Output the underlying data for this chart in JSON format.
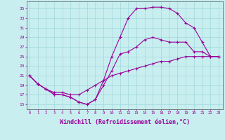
{
  "background_color": "#c8eef0",
  "grid_color": "#a0d8dc",
  "line_color": "#990099",
  "xlabel": "Windchill (Refroidissement éolien,°C)",
  "xlabel_fontsize": 6,
  "xtick_labels": [
    "0",
    "1",
    "2",
    "3",
    "4",
    "5",
    "6",
    "7",
    "8",
    "9",
    "10",
    "11",
    "12",
    "13",
    "14",
    "15",
    "16",
    "17",
    "18",
    "19",
    "20",
    "21",
    "22",
    "23"
  ],
  "ytick_labels": [
    "15",
    "17",
    "19",
    "21",
    "23",
    "25",
    "27",
    "29",
    "31",
    "33",
    "35"
  ],
  "ylim": [
    14.0,
    36.5
  ],
  "xlim": [
    -0.3,
    23.5
  ],
  "curve_upper_x": [
    0,
    1,
    2,
    3,
    4,
    5,
    6,
    7,
    8,
    9,
    10,
    11,
    12,
    13,
    14,
    15,
    16,
    17,
    18,
    19,
    20,
    21,
    22,
    23
  ],
  "curve_upper_y": [
    21,
    19.3,
    18.2,
    17.1,
    17.0,
    16.5,
    15.5,
    15.0,
    16.0,
    20.0,
    25.0,
    29.0,
    33.0,
    35.0,
    35.0,
    35.3,
    35.3,
    35.0,
    34.0,
    32.0,
    31.0,
    28.0,
    25.0,
    25.0
  ],
  "curve_mid_x": [
    0,
    1,
    2,
    3,
    4,
    5,
    6,
    7,
    8,
    9,
    10,
    11,
    12,
    13,
    14,
    15,
    16,
    17,
    18,
    19,
    20,
    21,
    22,
    23
  ],
  "curve_mid_y": [
    21,
    19.3,
    18.2,
    17.1,
    17.0,
    16.5,
    15.5,
    15.0,
    16.0,
    19.0,
    22.0,
    25.5,
    26.0,
    27.0,
    28.5,
    29.0,
    28.5,
    28.0,
    28.0,
    28.0,
    26.0,
    26.0,
    25.0,
    25.0
  ],
  "curve_lower_x": [
    0,
    1,
    2,
    3,
    4,
    5,
    6,
    7,
    8,
    9,
    10,
    11,
    12,
    13,
    14,
    15,
    16,
    17,
    18,
    19,
    20,
    21,
    22,
    23
  ],
  "curve_lower_y": [
    21,
    19.3,
    18.2,
    17.5,
    17.5,
    17.0,
    17.0,
    18.0,
    19.0,
    20.0,
    21.0,
    21.5,
    22.0,
    22.5,
    23.0,
    23.5,
    24.0,
    24.0,
    24.5,
    25.0,
    25.0,
    25.0,
    25.0,
    25.0
  ],
  "marker": "+",
  "markersize": 3,
  "linewidth": 0.8
}
